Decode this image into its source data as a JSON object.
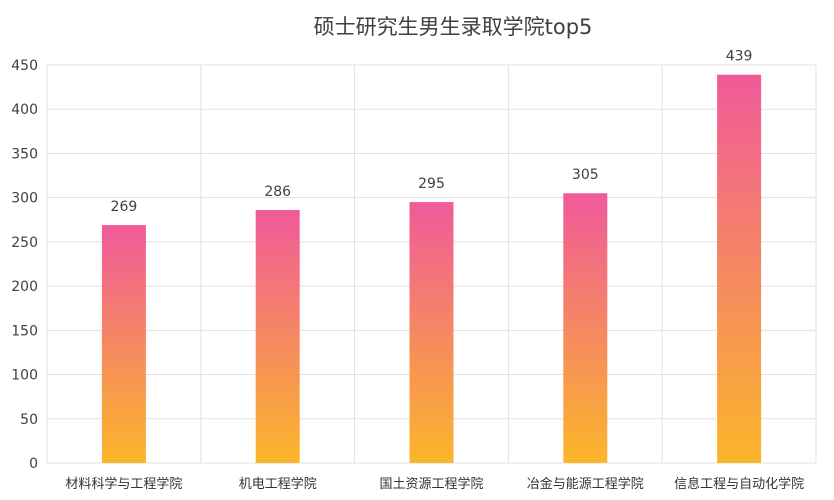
{
  "chart_data": {
    "type": "bar",
    "title": "硕士研究生男生录取学院top5",
    "xlabel": "",
    "ylabel": "",
    "categories": [
      "材料科学与工程学院",
      "机电工程学院",
      "国土资源工程学院",
      "冶金与能源工程学院",
      "信息工程与自动化学院"
    ],
    "values": [
      269,
      286,
      295,
      305,
      439
    ],
    "ylim": [
      0,
      450
    ],
    "yticks": [
      0,
      50,
      100,
      150,
      200,
      250,
      300,
      350,
      400,
      450
    ],
    "grid": true,
    "legend": "none",
    "data_labels": true,
    "colors": {
      "bar_top": "#f05a9a",
      "bar_bottom": "#fbb62a",
      "grid": "#e0e0e0",
      "text": "#404040"
    }
  }
}
